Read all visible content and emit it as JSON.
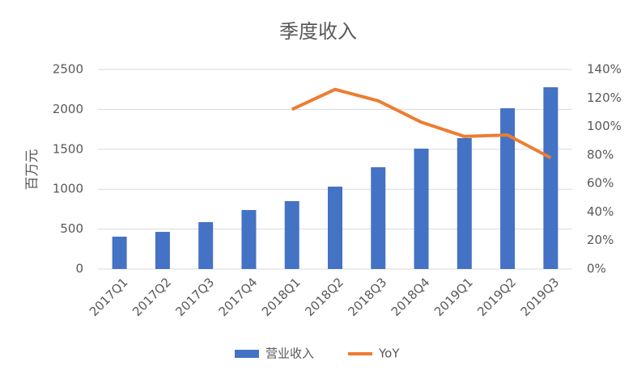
{
  "chart_data": {
    "type": "bar",
    "title": "季度收入",
    "y_label": "百万元",
    "categories": [
      "2017Q1",
      "2017Q2",
      "2017Q3",
      "2017Q4",
      "2018Q1",
      "2018Q2",
      "2018Q3",
      "2018Q4",
      "2019Q1",
      "2019Q2",
      "2019Q3"
    ],
    "series": [
      {
        "name": "营业收入",
        "type": "bar",
        "color": "#4472c4",
        "values": [
          405,
          465,
          587,
          739,
          850,
          1032,
          1275,
          1508,
          1640,
          2014,
          2277
        ]
      },
      {
        "name": "YoY",
        "type": "line",
        "axis": "y2",
        "color": "#ed7d31",
        "values": [
          null,
          null,
          null,
          null,
          112,
          126,
          118,
          103,
          93,
          94,
          78
        ]
      }
    ],
    "ylim": [
      0,
      2500
    ],
    "yticks": [
      0,
      500,
      1000,
      1500,
      2000,
      2500
    ],
    "y2lim": [
      0,
      140
    ],
    "y2ticks": [
      {
        "value": 0,
        "label": "0%"
      },
      {
        "value": 20,
        "label": "20%"
      },
      {
        "value": 40,
        "label": "40%"
      },
      {
        "value": 60,
        "label": "60%"
      },
      {
        "value": 80,
        "label": "80%"
      },
      {
        "value": 100,
        "label": "100%"
      },
      {
        "value": 120,
        "label": "120%"
      },
      {
        "value": 140,
        "label": "140%"
      }
    ],
    "grid": true
  }
}
